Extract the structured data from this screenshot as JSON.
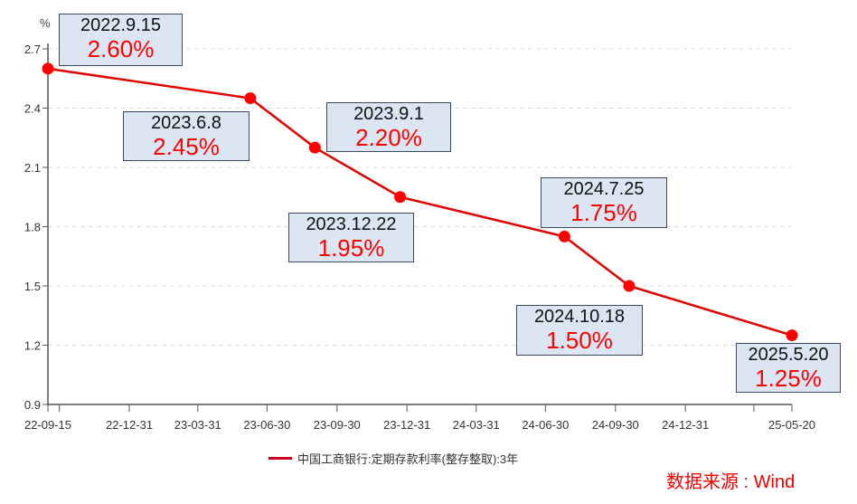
{
  "chart_data": {
    "type": "line",
    "title": "",
    "xlabel": "",
    "ylabel": "%",
    "ylim": [
      0.9,
      2.7
    ],
    "y_ticks": [
      "0.9",
      "1.2",
      "1.5",
      "1.8",
      "2.1",
      "2.4",
      "2.7"
    ],
    "x_range": [
      "2022-09-15",
      "2025-05-20"
    ],
    "x_ticks": [
      {
        "date": "2022-09-15",
        "label": "22-09-15"
      },
      {
        "date": "2022-09-30",
        "label": ""
      },
      {
        "date": "2022-12-31",
        "label": "22-12-31"
      },
      {
        "date": "2023-03-31",
        "label": "23-03-31"
      },
      {
        "date": "2023-06-30",
        "label": "23-06-30"
      },
      {
        "date": "2023-09-30",
        "label": "23-09-30"
      },
      {
        "date": "2023-12-31",
        "label": "23-12-31"
      },
      {
        "date": "2024-03-31",
        "label": "24-03-31"
      },
      {
        "date": "2024-06-30",
        "label": "24-06-30"
      },
      {
        "date": "2024-09-30",
        "label": "24-09-30"
      },
      {
        "date": "2024-12-31",
        "label": "24-12-31"
      },
      {
        "date": "2025-03-31",
        "label": ""
      },
      {
        "date": "2025-05-20",
        "label": "25-05-20"
      }
    ],
    "grid": "horizontal dashed",
    "legend_position": "bottom",
    "series": [
      {
        "name": "中国工商银行:定期存款利率(整存整取):3年",
        "color": "#e00000",
        "points": [
          {
            "date": "2022-09-15",
            "value": 2.6
          },
          {
            "date": "2023-06-08",
            "value": 2.45
          },
          {
            "date": "2023-09-01",
            "value": 2.2
          },
          {
            "date": "2023-12-22",
            "value": 1.95
          },
          {
            "date": "2024-07-25",
            "value": 1.75
          },
          {
            "date": "2024-10-18",
            "value": 1.5
          },
          {
            "date": "2025-05-20",
            "value": 1.25
          }
        ]
      }
    ],
    "annotations": [
      {
        "date_label": "2022.9.15",
        "value_label": "2.60%"
      },
      {
        "date_label": "2023.6.8",
        "value_label": "2.45%"
      },
      {
        "date_label": "2023.9.1",
        "value_label": "2.20%"
      },
      {
        "date_label": "2023.12.22",
        "value_label": "1.95%"
      },
      {
        "date_label": "2024.7.25",
        "value_label": "1.75%"
      },
      {
        "date_label": "2024.10.18",
        "value_label": "1.50%"
      },
      {
        "date_label": "2025.5.20",
        "value_label": "1.25%"
      }
    ],
    "source": "数据来源 : Wind"
  }
}
